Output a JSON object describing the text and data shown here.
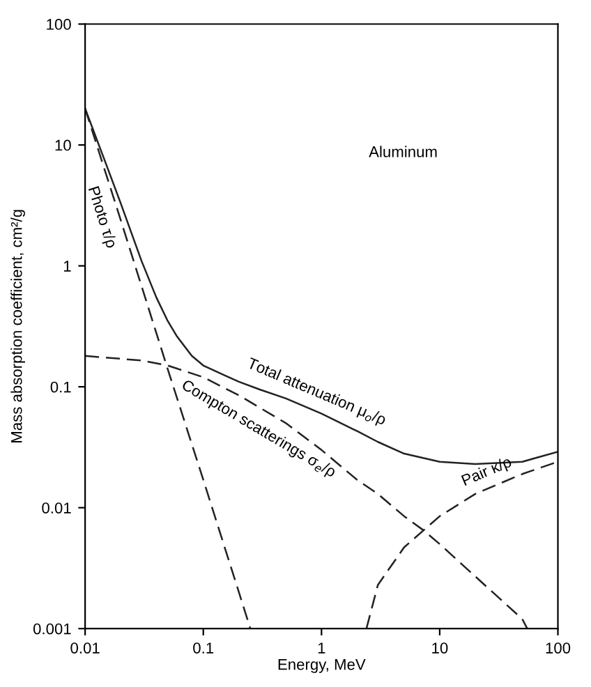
{
  "chart_data": {
    "type": "line",
    "xlabel": "Energy, MeV",
    "ylabel": "Mass absorption coefficient, cm²/g",
    "log": "xy",
    "grid": false,
    "legend": false,
    "marker": "none",
    "xlim": [
      0.01,
      100
    ],
    "xticks": [
      0.01,
      0.1,
      1,
      10,
      100
    ],
    "ylim": [
      0.001,
      100
    ],
    "yticks": [
      0.001,
      0.01,
      0.1,
      1,
      10,
      100
    ],
    "annotations": [
      "Aluminum"
    ],
    "series": [
      {
        "name": "Total attenuation μ$_{o}$/ρ",
        "color": "#222222",
        "line_style": "solid",
        "x": [
          0.01,
          0.015,
          0.02,
          0.03,
          0.04,
          0.05,
          0.06,
          0.08,
          0.1,
          0.15,
          0.2,
          0.3,
          0.5,
          1,
          2,
          3,
          5,
          10,
          20,
          50,
          100
        ],
        "values": [
          20,
          7,
          3.3,
          1.1,
          0.55,
          0.35,
          0.26,
          0.18,
          0.15,
          0.125,
          0.11,
          0.095,
          0.08,
          0.06,
          0.043,
          0.035,
          0.028,
          0.024,
          0.023,
          0.024,
          0.029
        ]
      },
      {
        "name": "Photo τ/ρ",
        "color": "#222222",
        "line_style": "dashed",
        "x": [
          0.01,
          0.02,
          0.05,
          0.1,
          0.2,
          0.25
        ],
        "values": [
          20,
          2.4,
          0.14,
          0.017,
          0.002,
          0.001
        ]
      },
      {
        "name": "Compton scatterings σ$_{e}$/ρ",
        "color": "#222222",
        "line_style": "dashed",
        "x": [
          0.01,
          0.03,
          0.05,
          0.1,
          0.2,
          0.5,
          1,
          2,
          3,
          5,
          7.3,
          10,
          20,
          50,
          55
        ],
        "values": [
          0.18,
          0.165,
          0.15,
          0.12,
          0.085,
          0.05,
          0.03,
          0.017,
          0.013,
          0.0085,
          0.0065,
          0.005,
          0.0027,
          0.0012,
          0.001
        ]
      },
      {
        "name": "Pair κ/ρ",
        "color": "#222222",
        "line_style": "dashed",
        "x": [
          2.4,
          3,
          5,
          7.3,
          10,
          20,
          50,
          100
        ],
        "values": [
          0.001,
          0.0023,
          0.0047,
          0.0065,
          0.0085,
          0.013,
          0.019,
          0.024
        ]
      }
    ]
  }
}
